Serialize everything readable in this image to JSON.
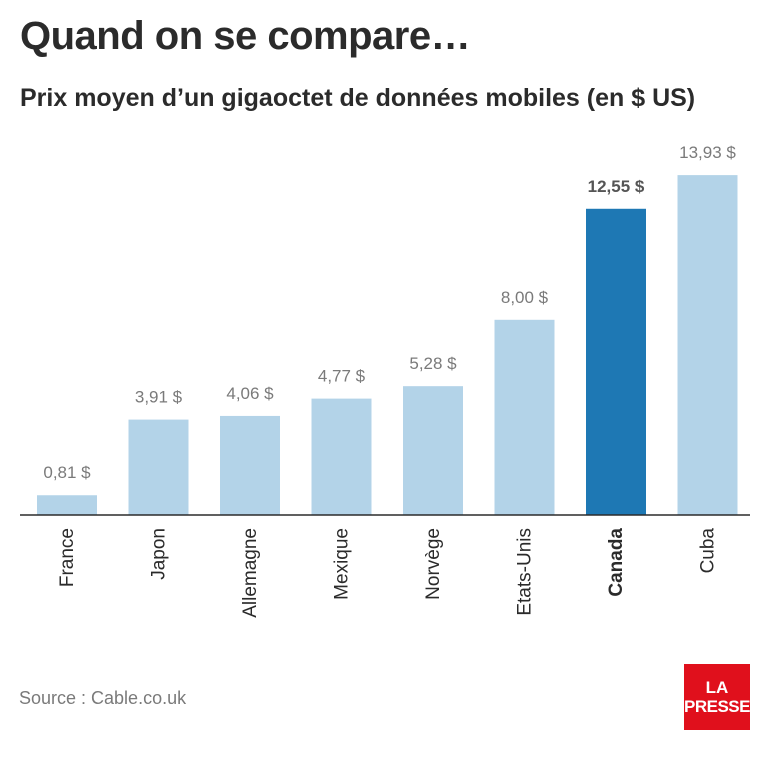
{
  "header": {
    "title": "Quand on se compare…",
    "subtitle": "Prix moyen d’un gigaoctet de données mobiles (en $ US)"
  },
  "footer": {
    "source": "Source : Cable.co.uk"
  },
  "logo": {
    "line1": "LA",
    "line2": "PRESSE",
    "color": "#e0101c"
  },
  "colors": {
    "bar": "#b3d3e8",
    "highlight_bar": "#1e78b4",
    "value_label": "#7a7a7a",
    "highlight_label": "#555555",
    "category_label": "#2b2b2b",
    "axis": "#2b2b2b"
  },
  "chart_data": {
    "type": "bar",
    "title": "Quand on se compare…",
    "subtitle": "Prix moyen d’un gigaoctet de données mobiles (en $ US)",
    "categories": [
      "France",
      "Japon",
      "Allemagne",
      "Mexique",
      "Norvège",
      "Etats-Unis",
      "Canada",
      "Cuba"
    ],
    "values": [
      0.81,
      3.91,
      4.06,
      4.77,
      5.28,
      8.0,
      12.55,
      13.93
    ],
    "value_labels": [
      "0,81 $",
      "3,91 $",
      "4,06 $",
      "4,77 $",
      "5,28 $",
      "8,00 $",
      "12,55 $",
      "13,93 $"
    ],
    "highlight": "Canada",
    "ylim": [
      0,
      14
    ],
    "grid": false,
    "legend": "none"
  }
}
